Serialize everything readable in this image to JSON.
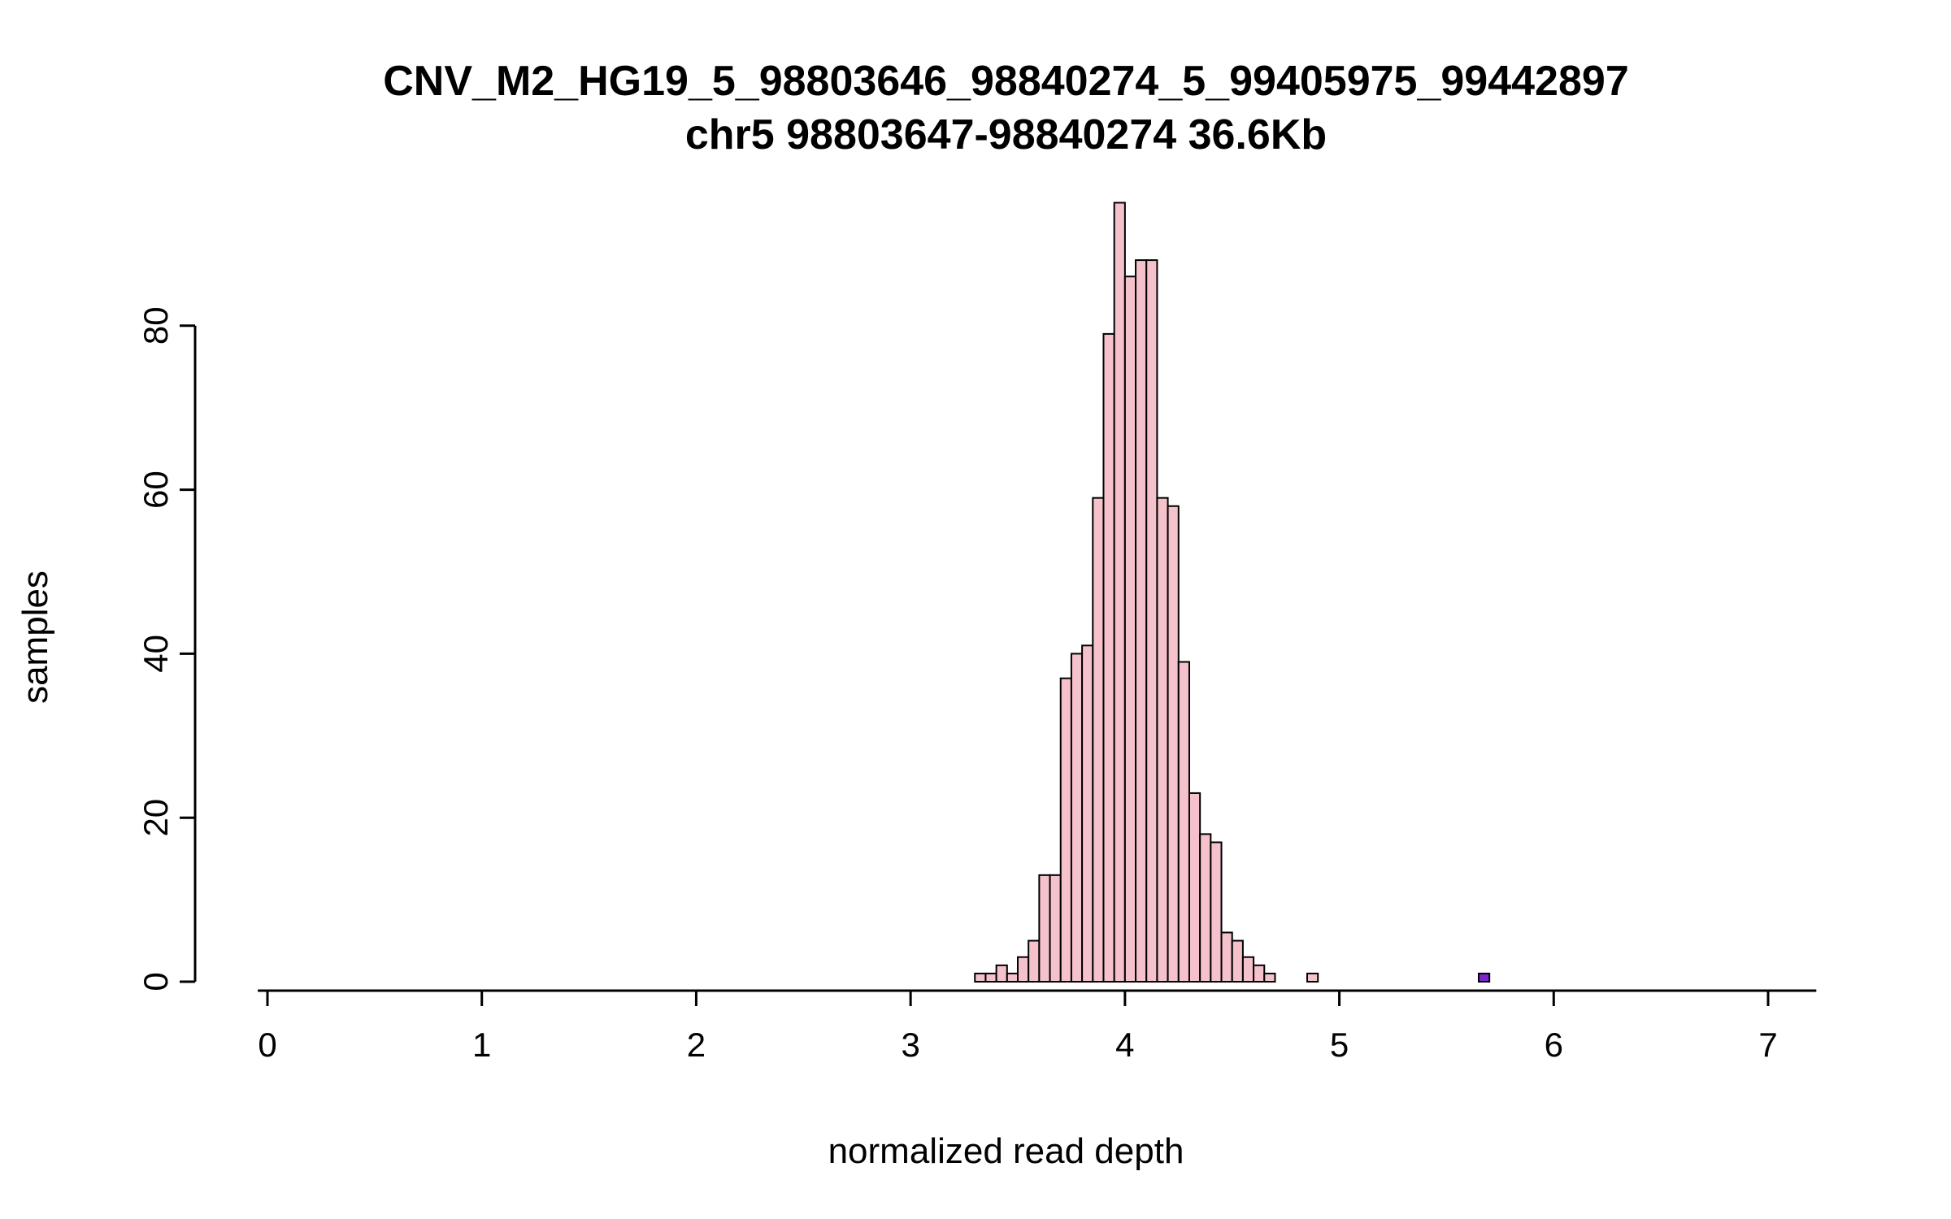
{
  "chart_data": {
    "type": "bar",
    "subtype": "histogram",
    "title": "CNV_M2_HG19_5_98803646_98840274_5_99405975_99442897",
    "subtitle": "chr5 98803647-98840274 36.6Kb",
    "xlabel": "normalized read depth",
    "ylabel": "samples",
    "xlim": [
      0,
      7.2
    ],
    "ylim": [
      0,
      95
    ],
    "x_ticks": [
      0,
      1,
      2,
      3,
      4,
      5,
      6,
      7
    ],
    "y_ticks": [
      0,
      20,
      40,
      60,
      80
    ],
    "grid": false,
    "legend": false,
    "bar_fill": "#F5C2CB",
    "bar_stroke": "#000000",
    "bins": {
      "start": 3.3,
      "width": 0.05,
      "counts": [
        1,
        1,
        2,
        1,
        3,
        5,
        13,
        13,
        37,
        40,
        41,
        59,
        79,
        95,
        86,
        88,
        88,
        59,
        58,
        39,
        23,
        18,
        17,
        6,
        5,
        3,
        2,
        1,
        0,
        0,
        0,
        1
      ]
    },
    "outlier": {
      "x": 5.65,
      "count": 1,
      "color": "#7D26CD"
    }
  }
}
